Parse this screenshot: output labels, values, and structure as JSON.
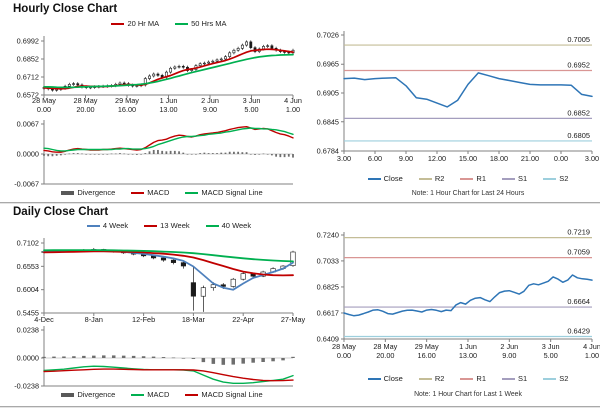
{
  "page": {
    "background": "#FFFFFF"
  },
  "chart_data": [
    {
      "id": "hourly",
      "type": "candlestick",
      "title": "Hourly Close Chart",
      "ylim": [
        0.6572,
        0.6992
      ],
      "yticks": [
        "0.6992",
        "0.6852",
        "0.6712",
        "0.6572"
      ],
      "xticks": [
        [
          "28 May",
          "0.00"
        ],
        [
          "28 May",
          "20.00"
        ],
        [
          "29 May",
          "16.00"
        ],
        [
          "1 Jun",
          "13.00"
        ],
        [
          "2 Jun",
          "9.00"
        ],
        [
          "3 Jun",
          "5.00"
        ],
        [
          "4 Jun",
          "1.00"
        ]
      ],
      "close": [
        0.663,
        0.662,
        0.661,
        0.6615,
        0.6625,
        0.664,
        0.6655,
        0.666,
        0.665,
        0.6635,
        0.663,
        0.6633,
        0.6636,
        0.6638,
        0.664,
        0.6642,
        0.6645,
        0.6655,
        0.6665,
        0.666,
        0.6648,
        0.6642,
        0.6645,
        0.665,
        0.67,
        0.672,
        0.6735,
        0.6725,
        0.671,
        0.675,
        0.678,
        0.679,
        0.6795,
        0.6788,
        0.6762,
        0.677,
        0.68,
        0.6815,
        0.682,
        0.6828,
        0.6835,
        0.6845,
        0.6852,
        0.687,
        0.69,
        0.692,
        0.6935,
        0.696,
        0.6985,
        0.694,
        0.691,
        0.693,
        0.695,
        0.6955,
        0.6935,
        0.692,
        0.691,
        0.6905,
        0.69,
        0.692
      ],
      "series": [
        {
          "name": "20 Hr MA",
          "color": "#C00000",
          "values": [
            0.6628,
            0.6626,
            0.6624,
            0.6622,
            0.6621,
            0.6622,
            0.6626,
            0.6632,
            0.6638,
            0.6641,
            0.6641,
            0.664,
            0.6639,
            0.6638,
            0.6638,
            0.6639,
            0.6641,
            0.6644,
            0.6648,
            0.6652,
            0.6653,
            0.6652,
            0.665,
            0.665,
            0.6655,
            0.6666,
            0.668,
            0.6694,
            0.6705,
            0.6714,
            0.6724,
            0.6737,
            0.675,
            0.6762,
            0.677,
            0.6775,
            0.6781,
            0.6789,
            0.6799,
            0.6808,
            0.6816,
            0.6824,
            0.6832,
            0.684,
            0.6851,
            0.6864,
            0.6878,
            0.6892,
            0.6905,
            0.6915,
            0.692,
            0.6923,
            0.6926,
            0.6928,
            0.6927,
            0.6924,
            0.692,
            0.6915,
            0.691,
            0.6906
          ]
        },
        {
          "name": "50 Hrs MA",
          "color": "#00B050",
          "values": [
            0.6636,
            0.6635,
            0.6634,
            0.6633,
            0.6632,
            0.6631,
            0.6631,
            0.6632,
            0.6633,
            0.6635,
            0.6636,
            0.6637,
            0.6638,
            0.6639,
            0.664,
            0.6641,
            0.6642,
            0.6643,
            0.6645,
            0.6647,
            0.6649,
            0.6651,
            0.6653,
            0.6656,
            0.666,
            0.6665,
            0.6671,
            0.6678,
            0.6686,
            0.6694,
            0.6702,
            0.6711,
            0.672,
            0.6729,
            0.6738,
            0.6746,
            0.6754,
            0.6762,
            0.677,
            0.6778,
            0.6786,
            0.6794,
            0.6802,
            0.681,
            0.6818,
            0.6826,
            0.6834,
            0.6842,
            0.685,
            0.6857,
            0.6863,
            0.6868,
            0.6872,
            0.6876,
            0.6879,
            0.6881,
            0.6883,
            0.6884,
            0.6885,
            0.6886
          ]
        }
      ],
      "macd": {
        "ylim": [
          -0.0067,
          0.0067
        ],
        "yticks": [
          "0.0067",
          "0.0000",
          "-0.0067"
        ],
        "divergence": [
          -0.0004,
          -0.0005,
          -0.0005,
          -0.0004,
          -0.0003,
          -0.0001,
          0.0001,
          0.0002,
          0.0002,
          0.0001,
          0.0,
          -0.0001,
          -0.0001,
          -0.0001,
          0.0,
          0.0,
          0.0001,
          0.0001,
          0.0002,
          0.0001,
          -0.0001,
          -0.0001,
          -0.0002,
          -0.0001,
          0.0002,
          0.0006,
          0.0009,
          0.0009,
          0.0007,
          0.0006,
          0.0007,
          0.0007,
          0.0006,
          0.0003,
          0.0,
          -0.0001,
          0.0,
          0.0002,
          0.0003,
          0.0002,
          0.0002,
          0.0002,
          0.0003,
          0.0003,
          0.0005,
          0.0005,
          0.0005,
          0.0004,
          0.0004,
          0.0,
          -0.0002,
          -0.0001,
          0.0001,
          0.0,
          -0.0003,
          -0.0006,
          -0.0007,
          -0.0007,
          -0.0006,
          -0.0008
        ],
        "macd": [
          0.0008,
          0.0007,
          0.0005,
          0.0004,
          0.0004,
          0.0006,
          0.0009,
          0.0011,
          0.0012,
          0.0011,
          0.001,
          0.0009,
          0.0009,
          0.0009,
          0.001,
          0.001,
          0.0011,
          0.0012,
          0.0013,
          0.0012,
          0.0011,
          0.001,
          0.0009,
          0.001,
          0.0014,
          0.002,
          0.0026,
          0.003,
          0.0031,
          0.0033,
          0.0037,
          0.004,
          0.0042,
          0.0041,
          0.0039,
          0.0038,
          0.004,
          0.0043,
          0.0045,
          0.0046,
          0.0047,
          0.0048,
          0.005,
          0.0052,
          0.0055,
          0.0057,
          0.0059,
          0.006,
          0.0061,
          0.0058,
          0.0055,
          0.0056,
          0.0057,
          0.0056,
          0.0052,
          0.0048,
          0.0045,
          0.0043,
          0.004,
          0.0036
        ],
        "signal": [
          0.0013,
          0.0012,
          0.001,
          0.0008,
          0.0007,
          0.0007,
          0.0008,
          0.0009,
          0.001,
          0.001,
          0.001,
          0.001,
          0.001,
          0.001,
          0.001,
          0.001,
          0.001,
          0.0011,
          0.0011,
          0.0012,
          0.0012,
          0.0011,
          0.0011,
          0.0011,
          0.0012,
          0.0014,
          0.0017,
          0.0021,
          0.0024,
          0.0027,
          0.003,
          0.0033,
          0.0036,
          0.0038,
          0.0039,
          0.0039,
          0.004,
          0.0041,
          0.0042,
          0.0044,
          0.0045,
          0.0046,
          0.0047,
          0.0049,
          0.005,
          0.0052,
          0.0054,
          0.0056,
          0.0057,
          0.0058,
          0.0057,
          0.0057,
          0.0056,
          0.0056,
          0.0055,
          0.0054,
          0.0052,
          0.005,
          0.0047,
          0.0044
        ],
        "legend": [
          {
            "name": "Divergence",
            "color": "#595959"
          },
          {
            "name": "MACD",
            "color": "#C00000"
          },
          {
            "name": "MACD Signal Line",
            "color": "#00B050"
          }
        ]
      }
    },
    {
      "id": "hourly_pivot",
      "type": "line",
      "note": "Note: 1 Hour Chart for Last 24 Hours",
      "ylim": [
        0.6784,
        0.7026
      ],
      "yticks": [
        "0.7026",
        "0.6965",
        "0.6905",
        "0.6845",
        "0.6784"
      ],
      "xticks": [
        "3.00",
        "6.00",
        "9.00",
        "12.00",
        "15.00",
        "18.00",
        "21.00",
        "0.00",
        "3.00"
      ],
      "close": {
        "name": "Close",
        "color": "#2E75B6",
        "values": [
          0.6935,
          0.6936,
          0.6933,
          0.6935,
          0.6936,
          0.6937,
          0.692,
          0.6895,
          0.6892,
          0.6884,
          0.6876,
          0.689,
          0.6923,
          0.6947,
          0.6941,
          0.6935,
          0.6931,
          0.6927,
          0.6923,
          0.6922,
          0.6922,
          0.6922,
          0.6921,
          0.6902,
          0.6898
        ]
      },
      "levels": [
        {
          "name": "R2",
          "label": "0.7005",
          "color": "#C4BD97"
        },
        {
          "name": "R1",
          "label": "0.6952",
          "color": "#D99694"
        },
        {
          "name": "S1",
          "label": "0.6852",
          "color": "#A49EBE"
        },
        {
          "name": "S2",
          "label": "0.6805",
          "color": "#9DCFDD"
        }
      ]
    },
    {
      "id": "daily",
      "type": "candlestick",
      "title": "Daily Close Chart",
      "ylim": [
        0.5455,
        0.7102
      ],
      "yticks": [
        "0.7102",
        "0.6553",
        "0.6004",
        "0.5455"
      ],
      "xticks": [
        "4-Dec",
        "8-Jan",
        "12-Feb",
        "18-Mar",
        "22-Apr",
        "27-May"
      ],
      "candles": [
        [
          0.689,
          0.693,
          0.686,
          0.69
        ],
        [
          0.69,
          0.6925,
          0.687,
          0.6895
        ],
        [
          0.6895,
          0.693,
          0.6875,
          0.6905
        ],
        [
          0.6905,
          0.695,
          0.6885,
          0.6915
        ],
        [
          0.6915,
          0.696,
          0.6895,
          0.694
        ],
        [
          0.694,
          0.6985,
          0.6915,
          0.695
        ],
        [
          0.695,
          0.6965,
          0.6905,
          0.693
        ],
        [
          0.693,
          0.6945,
          0.6875,
          0.69
        ],
        [
          0.69,
          0.692,
          0.6845,
          0.687
        ],
        [
          0.687,
          0.689,
          0.6815,
          0.684
        ],
        [
          0.684,
          0.686,
          0.677,
          0.68
        ],
        [
          0.68,
          0.682,
          0.672,
          0.675
        ],
        [
          0.675,
          0.677,
          0.666,
          0.67
        ],
        [
          0.67,
          0.672,
          0.66,
          0.664
        ],
        [
          0.664,
          0.666,
          0.65,
          0.656
        ],
        [
          0.617,
          0.656,
          0.551,
          0.585
        ],
        [
          0.585,
          0.61,
          0.548,
          0.605
        ],
        [
          0.605,
          0.618,
          0.598,
          0.612
        ],
        [
          0.612,
          0.616,
          0.602,
          0.608
        ],
        [
          0.608,
          0.628,
          0.605,
          0.625
        ],
        [
          0.625,
          0.642,
          0.622,
          0.638
        ],
        [
          0.638,
          0.64,
          0.626,
          0.632
        ],
        [
          0.632,
          0.645,
          0.63,
          0.642
        ],
        [
          0.642,
          0.653,
          0.64,
          0.65
        ],
        [
          0.65,
          0.658,
          0.647,
          0.656
        ],
        [
          0.657,
          0.692,
          0.654,
          0.689
        ]
      ],
      "series": [
        {
          "name": "4 Week",
          "color": "#4F81BD",
          "values": [
            0.69,
            0.6902,
            0.6905,
            0.691,
            0.692,
            0.693,
            0.6928,
            0.6915,
            0.6895,
            0.687,
            0.6845,
            0.6815,
            0.678,
            0.674,
            0.668,
            0.655,
            0.635,
            0.615,
            0.605,
            0.6004,
            0.615,
            0.628,
            0.635,
            0.642,
            0.65,
            0.664
          ]
        },
        {
          "name": "13 Week",
          "color": "#C00000",
          "values": [
            0.688,
            0.6885,
            0.689,
            0.6895,
            0.69,
            0.6905,
            0.6905,
            0.69,
            0.6895,
            0.689,
            0.688,
            0.6865,
            0.685,
            0.683,
            0.68,
            0.676,
            0.67,
            0.663,
            0.656,
            0.649,
            0.643,
            0.639,
            0.636,
            0.6345,
            0.634,
            0.6345
          ]
        },
        {
          "name": "40 Week",
          "color": "#00B050",
          "values": [
            0.693,
            0.6932,
            0.6933,
            0.6934,
            0.6935,
            0.6935,
            0.6933,
            0.693,
            0.6926,
            0.6921,
            0.6915,
            0.6908,
            0.69,
            0.689,
            0.6878,
            0.6862,
            0.684,
            0.6815,
            0.679,
            0.6765,
            0.6742,
            0.6722,
            0.6705,
            0.669,
            0.6678,
            0.6668
          ]
        }
      ],
      "macd": {
        "ylim": [
          -0.0238,
          0.0238
        ],
        "yticks": [
          "0.0238",
          "0.0000",
          "-0.0238"
        ],
        "divergence": [
          0.001,
          0.0012,
          0.0013,
          0.0015,
          0.0018,
          0.002,
          0.0022,
          0.0022,
          0.002,
          0.0018,
          0.0015,
          0.0012,
          0.0008,
          0.0004,
          0.0,
          -0.0008,
          -0.0035,
          -0.005,
          -0.0058,
          -0.0056,
          -0.0048,
          -0.004,
          -0.0034,
          -0.0028,
          -0.002,
          0.001
        ],
        "macd": [
          -0.0105,
          -0.01,
          -0.0095,
          -0.0085,
          -0.0075,
          -0.007,
          -0.0072,
          -0.0078,
          -0.0085,
          -0.0092,
          -0.0098,
          -0.01,
          -0.01,
          -0.01,
          -0.0102,
          -0.011,
          -0.0145,
          -0.018,
          -0.0205,
          -0.0215,
          -0.0215,
          -0.021,
          -0.02,
          -0.019,
          -0.018,
          -0.015
        ],
        "signal": [
          -0.0115,
          -0.0112,
          -0.0108,
          -0.0104,
          -0.01,
          -0.0096,
          -0.0094,
          -0.0094,
          -0.0096,
          -0.0098,
          -0.01,
          -0.01,
          -0.01,
          -0.01,
          -0.01,
          -0.0102,
          -0.011,
          -0.0125,
          -0.0142,
          -0.0158,
          -0.0172,
          -0.0183,
          -0.019,
          -0.0193,
          -0.0192,
          -0.0188
        ],
        "legend": [
          {
            "name": "Divergence",
            "color": "#595959"
          },
          {
            "name": "MACD",
            "color": "#00B050"
          },
          {
            "name": "MACD Signal Line",
            "color": "#C00000"
          }
        ]
      }
    },
    {
      "id": "daily_pivot",
      "type": "line",
      "note": "Note: 1 Hour Chart for Last 1 Week",
      "ylim": [
        0.6409,
        0.724
      ],
      "yticks": [
        "0.7240",
        "0.7033",
        "0.6825",
        "0.6617",
        "0.6409"
      ],
      "xticks": [
        [
          "28 May",
          "0.00"
        ],
        [
          "28 May",
          "20.00"
        ],
        [
          "29 May",
          "16.00"
        ],
        [
          "1 Jun",
          "13.00"
        ],
        [
          "2 Jun",
          "9.00"
        ],
        [
          "3 Jun",
          "5.00"
        ],
        [
          "4 Jun",
          "1.00"
        ]
      ],
      "close": {
        "name": "Close",
        "color": "#2E75B6",
        "values": [
          0.6617,
          0.6605,
          0.6595,
          0.66,
          0.6612,
          0.6625,
          0.664,
          0.6642,
          0.663,
          0.6612,
          0.6608,
          0.662,
          0.6632,
          0.6638,
          0.664,
          0.6633,
          0.6625,
          0.664,
          0.6645,
          0.6638,
          0.6628,
          0.664,
          0.6636,
          0.668,
          0.67,
          0.6688,
          0.6718,
          0.6735,
          0.674,
          0.6722,
          0.6708,
          0.6745,
          0.678,
          0.6792,
          0.6795,
          0.6782,
          0.6768,
          0.679,
          0.6838,
          0.685,
          0.6842,
          0.6856,
          0.687,
          0.6905,
          0.6888,
          0.6862,
          0.688,
          0.692,
          0.6898,
          0.689,
          0.6886,
          0.688
        ]
      },
      "levels": [
        {
          "name": "R2",
          "label": "0.7219",
          "color": "#C4BD97"
        },
        {
          "name": "R1",
          "label": "0.7059",
          "color": "#D99694"
        },
        {
          "name": "S1",
          "label": "0.6664",
          "color": "#A49EBE"
        },
        {
          "name": "S2",
          "label": "0.6429",
          "color": "#9DCFDD"
        }
      ]
    }
  ],
  "colors": {
    "candle": "#1A1A1A",
    "axis": "#808080",
    "zero_line": "#BFBFBF",
    "tick_text": "#1A1A1A"
  }
}
